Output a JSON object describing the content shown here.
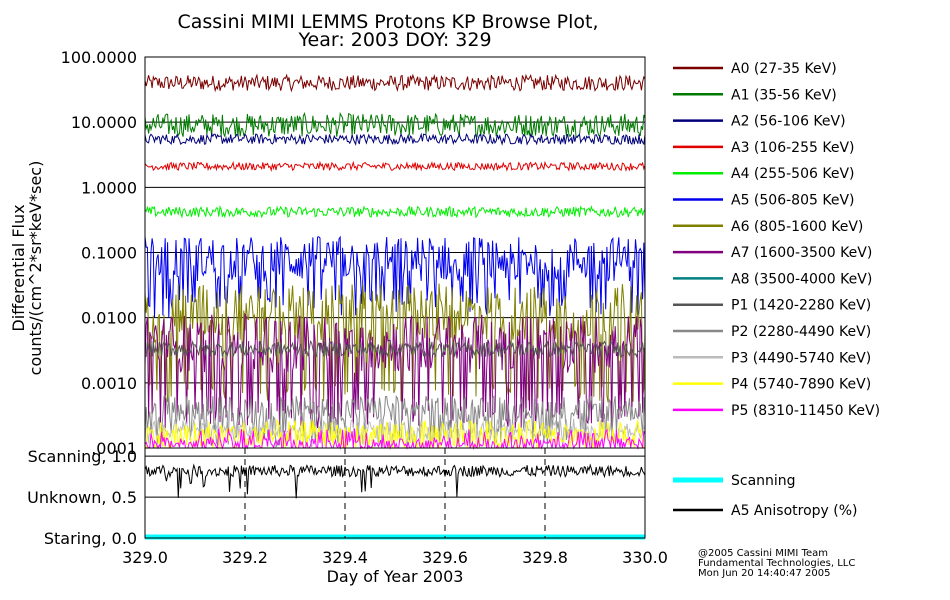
{
  "chart_data": {
    "type": "line",
    "title": "Cassini MIMI LEMMS Protons KP Browse Plot,",
    "subtitle": "Year: 2003 DOY: 329",
    "xlabel": "Day of Year 2003",
    "ylabel_line1": "Differential Flux",
    "ylabel_line2": "counts/(cm^2*sr*keV*sec)",
    "x_range": [
      329.0,
      330.0
    ],
    "x_ticks": [
      "329.0",
      "329.2",
      "329.4",
      "329.6",
      "329.8",
      "330.0"
    ],
    "x_tick_values": [
      329.0,
      329.2,
      329.4,
      329.6,
      329.8,
      330.0
    ],
    "y_scale": "log",
    "y_range": [
      0.0001,
      100
    ],
    "y_ticks": [
      "100.0000",
      "10.0000",
      "1.0000",
      "0.1000",
      "0.0100",
      "0.0010",
      ".0001"
    ],
    "y_tick_values": [
      100,
      10,
      1,
      0.1,
      0.01,
      0.001,
      0.0001
    ],
    "grid": true,
    "series": [
      {
        "name": "A0 (27-35 KeV)",
        "color": "#7a0000",
        "level": 40,
        "spread": 0.12,
        "min": 0
      },
      {
        "name": "A1 (35-56 KeV)",
        "color": "#007a00",
        "level": 9,
        "spread": 0.18,
        "min": 0
      },
      {
        "name": "A2 (56-106 KeV)",
        "color": "#00007a",
        "level": 5.5,
        "spread": 0.08,
        "min": 0
      },
      {
        "name": "A3 (106-255 KeV)",
        "color": "#e00000",
        "level": 2.1,
        "spread": 0.06,
        "min": 0
      },
      {
        "name": "A4 (255-506 KeV)",
        "color": "#00ee00",
        "level": 0.42,
        "spread": 0.08,
        "min": 0
      },
      {
        "name": "A5 (506-805 KeV)",
        "color": "#0000ee",
        "level": 0.08,
        "spread": 0.35,
        "min": 0.01
      },
      {
        "name": "A6 (805-1600 KeV)",
        "color": "#808000",
        "level": 0.012,
        "spread": 0.45,
        "min": 0.0005
      },
      {
        "name": "A7 (1600-3500 KeV)",
        "color": "#800080",
        "level": 0.004,
        "spread": 0.45,
        "min": 0.0002
      },
      {
        "name": "A8 (3500-4000 KeV)",
        "color": "#008080",
        "level": 0,
        "spread": 0,
        "min": 0
      },
      {
        "name": "P1 (1420-2280 KeV)",
        "color": "#555555",
        "level": 0.0033,
        "spread": 0.12,
        "min": 0
      },
      {
        "name": "P2 (2280-4490 KeV)",
        "color": "#888888",
        "level": 0.0004,
        "spread": 0.2,
        "min": 0.0001
      },
      {
        "name": "P3 (4490-5740 KeV)",
        "color": "#bbbbbb",
        "level": 0.0002,
        "spread": 0.15,
        "min": 0.0001
      },
      {
        "name": "P4 (5740-7890 KeV)",
        "color": "#ffff00",
        "level": 0.00015,
        "spread": 0.25,
        "min": 0.0001
      },
      {
        "name": "P5 (8310-11450 KeV)",
        "color": "#ff00ff",
        "level": 0.00011,
        "spread": 0.1,
        "min": 0.0001
      }
    ],
    "lower_panel": {
      "y_ticks": [
        "Scanning, 1.0",
        "Unknown, 0.5",
        "Staring, 0.0"
      ],
      "y_tick_values": [
        1.0,
        0.5,
        0.0
      ],
      "y_range": [
        0.0,
        1.1
      ],
      "series": [
        {
          "name": "Scanning",
          "color": "#00ffff",
          "level": 0.0
        },
        {
          "name": "A5 Anisotropy (%)",
          "color": "#000000",
          "level": 0.82
        }
      ]
    }
  },
  "credits": [
    "@2005 Cassini MIMI Team",
    "Fundamental Technologies, LLC",
    "Mon Jun 20 14:40:47 2005"
  ]
}
